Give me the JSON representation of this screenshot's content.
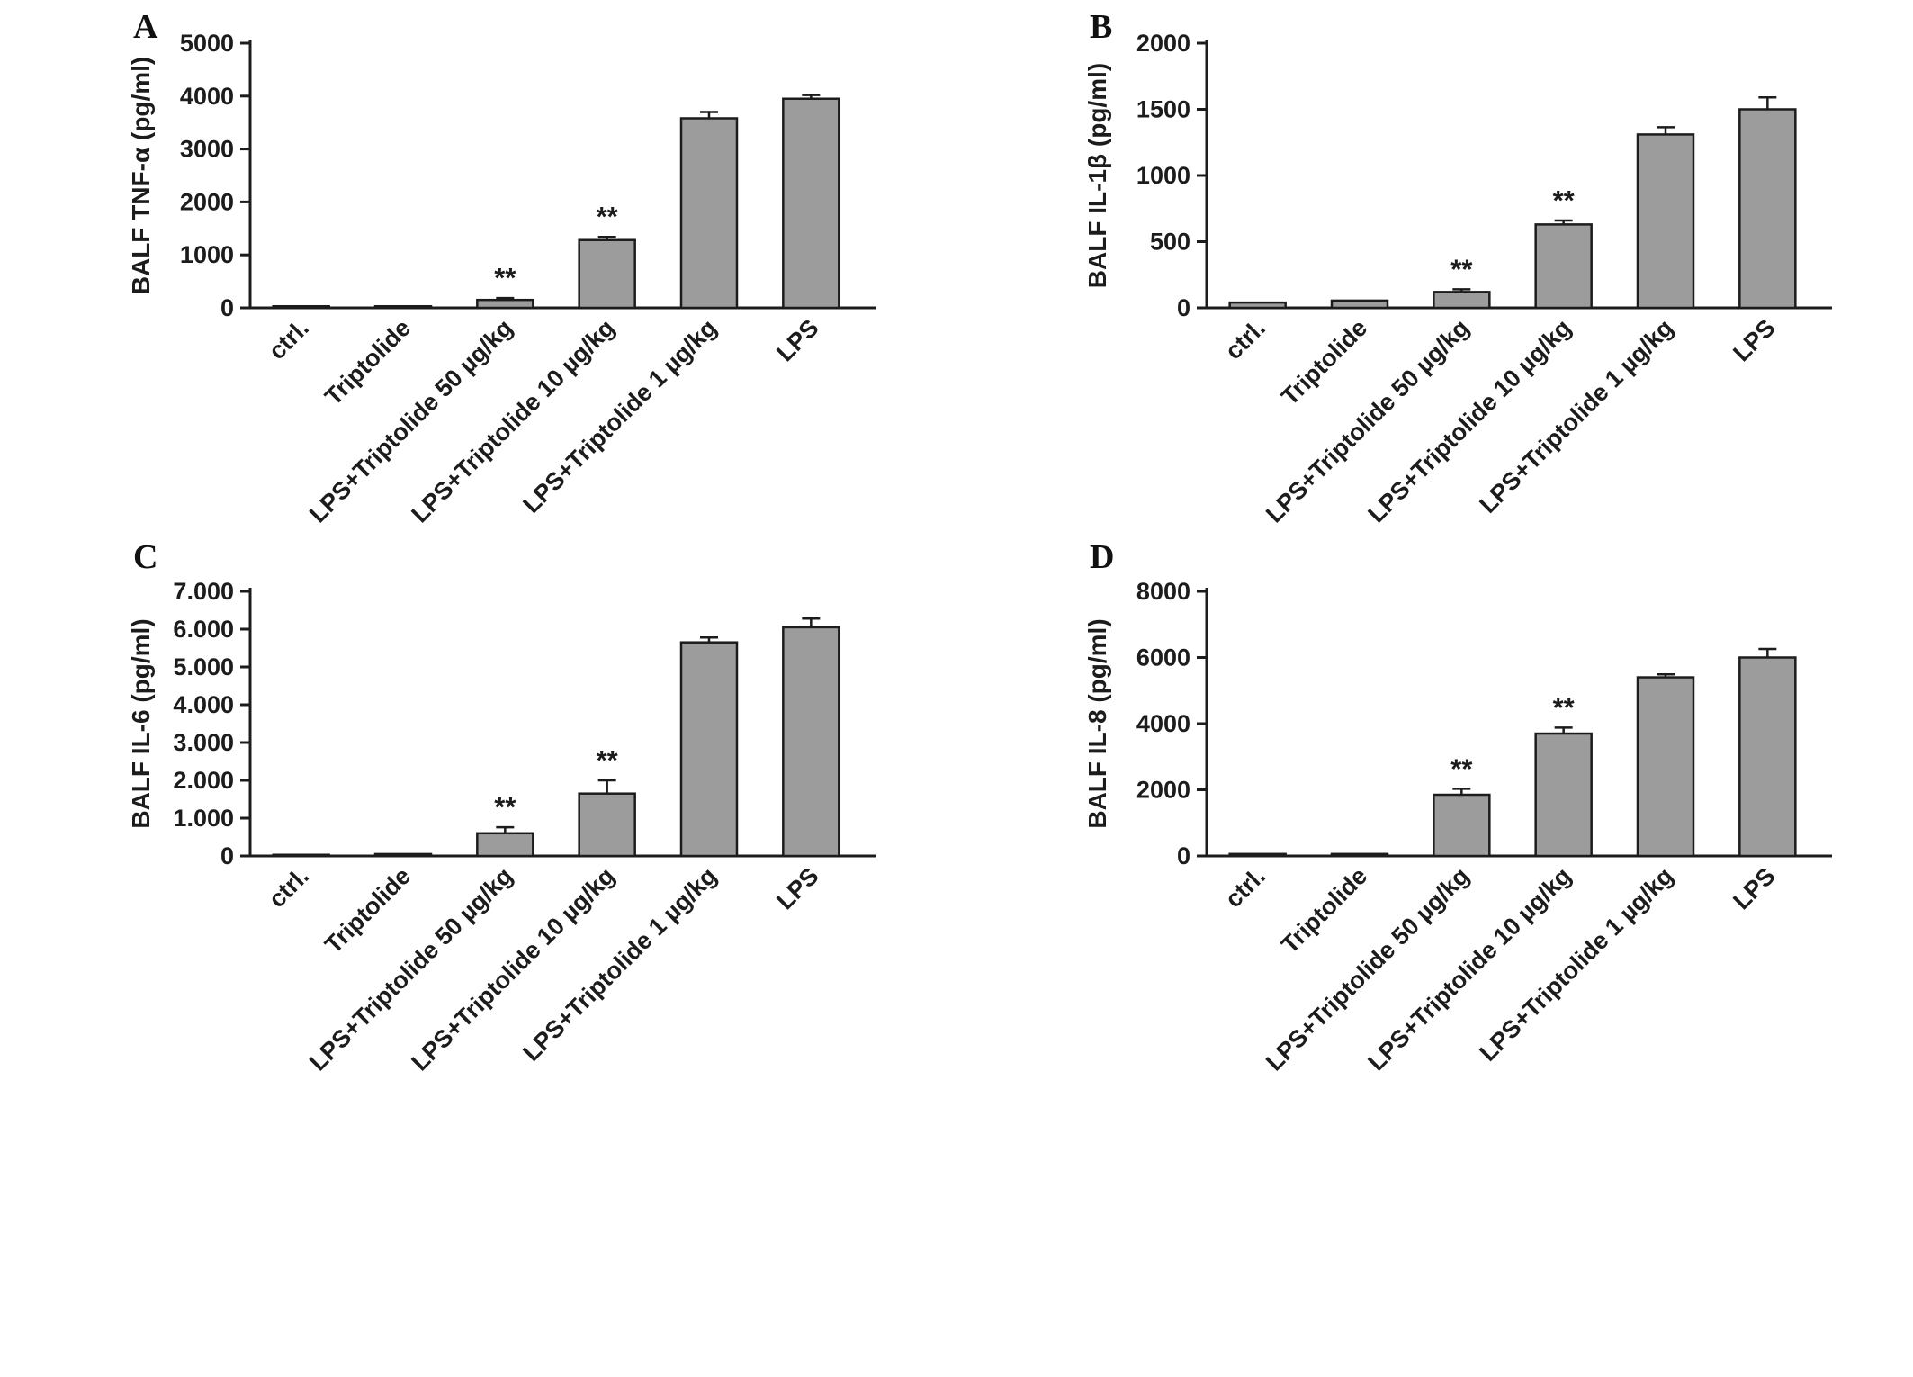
{
  "figure": {
    "panels": [
      {
        "letter": "A"
      },
      {
        "letter": "B"
      },
      {
        "letter": "C"
      },
      {
        "letter": "D"
      }
    ],
    "bar_color": "#9c9c9c",
    "edge_color": "#1c1c1c",
    "significance_symbol": "**"
  },
  "chart_data": [
    {
      "type": "bar",
      "panel": "A",
      "title": "",
      "xlabel": "",
      "ylabel": "BALF TNF-α (pg/ml)",
      "categories": [
        "ctrl.",
        "Triptolide",
        "LPS+Triptolide 50 µg/kg",
        "LPS+Triptolide 10 µg/kg",
        "LPS+Triptolide 1 µg/kg",
        "LPS"
      ],
      "values": [
        30,
        30,
        150,
        1280,
        3580,
        3950
      ],
      "errors": [
        15,
        15,
        35,
        60,
        120,
        70
      ],
      "significance": [
        "",
        "",
        "**",
        "**",
        "",
        ""
      ],
      "ylim": [
        0,
        5000
      ],
      "yticks": [
        0,
        1000,
        2000,
        3000,
        4000,
        5000
      ],
      "ytick_labels": [
        "0",
        "1000",
        "2000",
        "3000",
        "4000",
        "5000"
      ],
      "grid": false,
      "legend": "none",
      "bar_color": "#9c9c9c"
    },
    {
      "type": "bar",
      "panel": "B",
      "title": "",
      "xlabel": "",
      "ylabel": "BALF IL-1β (pg/ml)",
      "categories": [
        "ctrl.",
        "Triptolide",
        "LPS+Triptolide 50 µg/kg",
        "LPS+Triptolide 10 µg/kg",
        "LPS+Triptolide 1 µg/kg",
        "LPS"
      ],
      "values": [
        40,
        55,
        120,
        630,
        1310,
        1500
      ],
      "errors": [
        10,
        10,
        20,
        30,
        55,
        90
      ],
      "significance": [
        "",
        "",
        "**",
        "**",
        "",
        ""
      ],
      "ylim": [
        0,
        2000
      ],
      "yticks": [
        0,
        500,
        1000,
        1500,
        2000
      ],
      "ytick_labels": [
        "0",
        "500",
        "1000",
        "1500",
        "2000"
      ],
      "grid": false,
      "legend": "none",
      "bar_color": "#9c9c9c"
    },
    {
      "type": "bar",
      "panel": "C",
      "title": "",
      "xlabel": "",
      "ylabel": "BALF IL-6  (pg/ml)",
      "categories": [
        "ctrl.",
        "Triptolide",
        "LPS+Triptolide 50 µg/kg",
        "LPS+Triptolide 10 µg/kg",
        "LPS+Triptolide 1 µg/kg",
        "LPS"
      ],
      "values": [
        30,
        50,
        600,
        1650,
        5650,
        6050
      ],
      "errors": [
        15,
        20,
        160,
        350,
        130,
        230
      ],
      "significance": [
        "",
        "",
        "**",
        "**",
        "",
        ""
      ],
      "ylim": [
        0,
        7000
      ],
      "yticks": [
        0,
        1000,
        2000,
        3000,
        4000,
        5000,
        6000,
        7000
      ],
      "ytick_labels": [
        "0",
        "1.000",
        "2.000",
        "3.000",
        "4.000",
        "5.000",
        "6.000",
        "7.000"
      ],
      "grid": false,
      "legend": "none",
      "bar_color": "#9c9c9c"
    },
    {
      "type": "bar",
      "panel": "D",
      "title": "",
      "xlabel": "",
      "ylabel": "BALF IL-8  (pg/ml)",
      "categories": [
        "ctrl.",
        "Triptolide",
        "LPS+Triptolide 50 µg/kg",
        "LPS+Triptolide 10 µg/kg",
        "LPS+Triptolide 1 µg/kg",
        "LPS"
      ],
      "values": [
        60,
        60,
        1850,
        3700,
        5400,
        6000
      ],
      "errors": [
        20,
        20,
        180,
        180,
        90,
        260
      ],
      "significance": [
        "",
        "",
        "**",
        "**",
        "",
        ""
      ],
      "ylim": [
        0,
        8000
      ],
      "yticks": [
        0,
        2000,
        4000,
        6000,
        8000
      ],
      "ytick_labels": [
        "0",
        "2000",
        "4000",
        "6000",
        "8000"
      ],
      "grid": false,
      "legend": "none",
      "bar_color": "#9c9c9c"
    }
  ]
}
